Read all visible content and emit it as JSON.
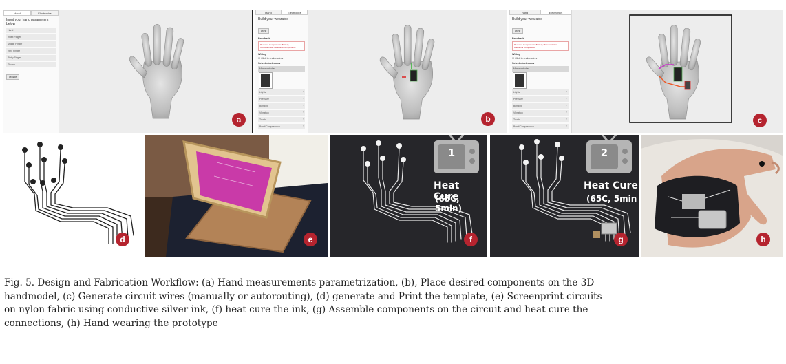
{
  "panels": {
    "a": {
      "badge": "a",
      "tabs": [
        "Hand",
        "Electronics"
      ],
      "title": "Input your hand parameters below",
      "rows": [
        "Hand",
        "Index Finger",
        "Middle Finger",
        "Ring Finger",
        "Pinky Finger",
        "Thumb"
      ],
      "button": "Update"
    },
    "b": {
      "badge": "b",
      "tabs": [
        "Hand",
        "Electronics"
      ],
      "title": "Build your wearable",
      "button": "Done",
      "feedback_label": "Feedback",
      "feedback_text": "Required Components: Battery, Microcontroller Additional Components",
      "wiring_label": "Wiring",
      "wiring_check": "Click to enable wires",
      "electronics_label": "Select electronics",
      "select_value": "Microcontroller",
      "rows": [
        "Lights",
        "Pressure",
        "Bending",
        "Vibration",
        "Touch",
        "Bend/Compression"
      ]
    },
    "c": {
      "badge": "c",
      "tabs": [
        "Hand",
        "Electronics"
      ],
      "title": "Build your wearable",
      "button": "Done",
      "feedback_label": "Feedback",
      "feedback_text": "Required Components: Battery, Microcontroller Additional Components",
      "wiring_label": "Wiring",
      "wiring_check": "Click to enable wires",
      "electronics_label": "Select electronics",
      "select_value": "Microcontroller",
      "rows": [
        "Lights",
        "Pressure",
        "Bending",
        "Vibration",
        "Touch",
        "Bend/Compression"
      ]
    },
    "d": {
      "badge": "d"
    },
    "e": {
      "badge": "e"
    },
    "f": {
      "badge": "f",
      "tv_number": "1",
      "heat_title": "Heat Cure",
      "heat_detail": "(65C, 5min)"
    },
    "g": {
      "badge": "g",
      "tv_number": "2",
      "heat_title": "Heat Cure",
      "heat_detail": "(65C, 5min"
    },
    "h": {
      "badge": "h"
    }
  },
  "caption": {
    "lines": [
      "Fig. 5.  Design and Fabrication Workflow: (a) Hand measurements parametrization, (b), Place desired components on the 3D",
      "handmodel, (c) Generate circuit wires (manually or autorouting), (d) generate and Print the template, (e) Screenprint circuits",
      "on nylon fabric using conductive silver ink, (f) heat cure the ink, (g) Assemble components on the circuit and heat cure the",
      "connections, (h) Hand wearing the prototype"
    ]
  },
  "colors": {
    "badge": "#b5242f",
    "fabric_dark": "#26262a",
    "magenta_screen": "#c93aa8",
    "wood": "#d9b77a",
    "ui_canvas": "#ededed"
  }
}
